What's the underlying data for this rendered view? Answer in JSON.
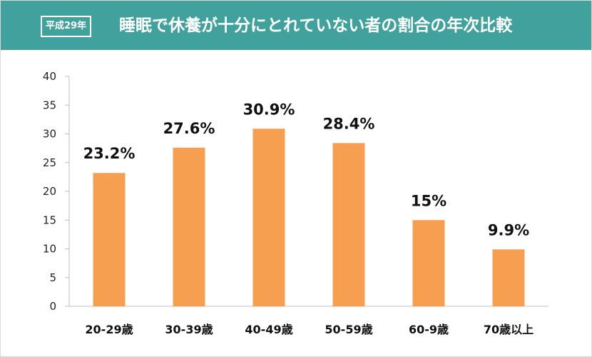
{
  "header": {
    "badge": "平成29年",
    "title": "睡眠で休養が十分にとれていない者の割合の年次比較"
  },
  "colors": {
    "header_bg": "#41a19c",
    "bar": "#f79f51",
    "axis": "#bfbfbf"
  },
  "chart_data": {
    "type": "bar",
    "title": "睡眠で休養が十分にとれていない者の割合の年次比較",
    "xlabel": "",
    "ylabel": "",
    "categories": [
      "20-29歳",
      "30-39歳",
      "40-49歳",
      "50-59歳",
      "60-9歳",
      "70歳以上"
    ],
    "values": [
      23.2,
      27.6,
      30.9,
      28.4,
      15,
      9.9
    ],
    "data_labels": [
      "23.2%",
      "27.6%",
      "30.9%",
      "28.4%",
      "15%",
      "9.9%"
    ],
    "ylim": [
      0,
      40
    ],
    "yticks": [
      0,
      5,
      10,
      15,
      20,
      25,
      30,
      35,
      40
    ],
    "grid": false,
    "legend": "none"
  }
}
